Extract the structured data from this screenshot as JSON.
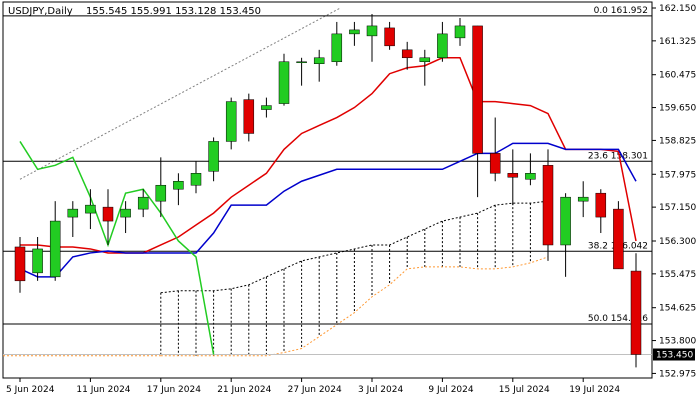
{
  "window": {
    "title": "USDJPY,Daily",
    "ohlc": "155.545 155.991 153.128 153.450"
  },
  "chart_data": {
    "type": "candlestick",
    "title": "USDJPY,Daily",
    "ylim": [
      152.86,
      162.2
    ],
    "y_ticks": [
      162.15,
      161.325,
      160.475,
      159.65,
      158.825,
      157.975,
      157.15,
      156.3,
      155.475,
      154.625,
      153.8,
      152.975
    ],
    "y_tick_labels": [
      "162.150",
      "161.325",
      "160.475",
      "159.650",
      "158.825",
      "157.975",
      "157.150",
      "156.300",
      "155.475",
      "154.625",
      "153.800",
      "152.975"
    ],
    "x_labels": [
      {
        "label": "5 Jun 2024",
        "index": 0
      },
      {
        "label": "11 Jun 2024",
        "index": 4
      },
      {
        "label": "17 Jun 2024",
        "index": 8
      },
      {
        "label": "21 Jun 2024",
        "index": 12
      },
      {
        "label": "27 Jun 2024",
        "index": 16
      },
      {
        "label": "3 Jul 2024",
        "index": 20
      },
      {
        "label": "9 Jul 2024",
        "index": 24
      },
      {
        "label": "15 Jul 2024",
        "index": 28
      },
      {
        "label": "19 Jul 2024",
        "index": 32
      }
    ],
    "candles": [
      {
        "o": 156.15,
        "h": 156.4,
        "l": 155.0,
        "c": 155.3
      },
      {
        "o": 155.5,
        "h": 156.4,
        "l": 155.3,
        "c": 156.1
      },
      {
        "o": 155.4,
        "h": 157.3,
        "l": 155.3,
        "c": 156.8
      },
      {
        "o": 156.9,
        "h": 157.3,
        "l": 156.4,
        "c": 157.1
      },
      {
        "o": 157.0,
        "h": 157.6,
        "l": 156.6,
        "c": 157.2
      },
      {
        "o": 157.15,
        "h": 157.6,
        "l": 156.2,
        "c": 156.8
      },
      {
        "o": 156.9,
        "h": 157.3,
        "l": 156.5,
        "c": 157.1
      },
      {
        "o": 157.1,
        "h": 157.6,
        "l": 156.9,
        "c": 157.4
      },
      {
        "o": 157.3,
        "h": 158.4,
        "l": 156.9,
        "c": 157.7
      },
      {
        "o": 157.6,
        "h": 158.0,
        "l": 157.2,
        "c": 157.8
      },
      {
        "o": 157.7,
        "h": 158.3,
        "l": 157.5,
        "c": 158.0
      },
      {
        "o": 158.05,
        "h": 158.9,
        "l": 157.8,
        "c": 158.8
      },
      {
        "o": 158.8,
        "h": 159.9,
        "l": 158.6,
        "c": 159.8
      },
      {
        "o": 159.85,
        "h": 160.0,
        "l": 158.8,
        "c": 159.0
      },
      {
        "o": 159.6,
        "h": 159.9,
        "l": 159.4,
        "c": 159.7
      },
      {
        "o": 159.75,
        "h": 161.0,
        "l": 159.7,
        "c": 160.8
      },
      {
        "o": 160.8,
        "h": 160.9,
        "l": 160.2,
        "c": 160.8
      },
      {
        "o": 160.75,
        "h": 161.1,
        "l": 160.3,
        "c": 160.9
      },
      {
        "o": 160.8,
        "h": 161.8,
        "l": 160.7,
        "c": 161.5
      },
      {
        "o": 161.5,
        "h": 161.8,
        "l": 161.2,
        "c": 161.6
      },
      {
        "o": 161.45,
        "h": 162.0,
        "l": 160.8,
        "c": 161.7
      },
      {
        "o": 161.65,
        "h": 161.8,
        "l": 161.1,
        "c": 161.2
      },
      {
        "o": 161.1,
        "h": 161.3,
        "l": 160.6,
        "c": 160.9
      },
      {
        "o": 160.8,
        "h": 161.1,
        "l": 160.2,
        "c": 160.9
      },
      {
        "o": 160.9,
        "h": 161.8,
        "l": 160.8,
        "c": 161.5
      },
      {
        "o": 161.4,
        "h": 161.9,
        "l": 161.2,
        "c": 161.7
      },
      {
        "o": 161.7,
        "h": 161.7,
        "l": 157.4,
        "c": 158.5
      },
      {
        "o": 158.5,
        "h": 159.4,
        "l": 157.8,
        "c": 158.0
      },
      {
        "o": 158.0,
        "h": 158.6,
        "l": 157.2,
        "c": 157.9
      },
      {
        "o": 157.85,
        "h": 158.5,
        "l": 157.7,
        "c": 158.0
      },
      {
        "o": 158.2,
        "h": 158.6,
        "l": 155.8,
        "c": 156.2
      },
      {
        "o": 156.2,
        "h": 157.5,
        "l": 155.4,
        "c": 157.4
      },
      {
        "o": 157.3,
        "h": 157.8,
        "l": 156.9,
        "c": 157.4
      },
      {
        "o": 157.5,
        "h": 157.6,
        "l": 156.5,
        "c": 156.9
      },
      {
        "o": 157.1,
        "h": 157.3,
        "l": 155.6,
        "c": 155.6
      },
      {
        "o": 155.545,
        "h": 155.991,
        "l": 153.128,
        "c": 153.45
      }
    ],
    "series": [
      {
        "name": "",
        "color": "#e00000",
        "values": [
          156.2,
          156.2,
          156.15,
          156.15,
          156.1,
          156.0,
          156.0,
          156.0,
          156.2,
          156.4,
          156.7,
          157.0,
          157.4,
          157.7,
          158.0,
          158.6,
          159.0,
          159.2,
          159.4,
          159.65,
          160.0,
          160.5,
          160.65,
          160.7,
          160.9,
          160.9,
          159.8,
          159.8,
          159.75,
          159.7,
          159.5,
          158.6,
          158.6,
          158.6,
          158.55,
          156.3
        ]
      },
      {
        "name": "",
        "color": "#0000cc",
        "values": [
          155.6,
          155.4,
          155.4,
          155.9,
          156.0,
          156.05,
          156.0,
          156.0,
          156.0,
          156.0,
          156.0,
          156.5,
          157.2,
          157.2,
          157.2,
          157.55,
          157.8,
          157.95,
          158.1,
          158.1,
          158.1,
          158.1,
          158.1,
          158.1,
          158.1,
          158.3,
          158.5,
          158.5,
          158.75,
          158.75,
          158.75,
          158.6,
          158.6,
          158.6,
          158.6,
          157.8
        ]
      },
      {
        "name": "",
        "color": "#22cc22",
        "values": [
          158.8,
          158.1,
          158.2,
          158.4,
          157.4,
          156.2,
          157.5,
          157.6,
          157.0,
          156.3,
          155.9,
          153.45
        ]
      }
    ],
    "cloud": {
      "span_a": [
        155.0,
        155.05,
        155.05,
        155.05,
        155.1,
        155.2,
        155.4,
        155.6,
        155.8,
        155.9,
        156.0,
        156.1,
        156.2,
        156.2,
        156.4,
        156.6,
        156.8,
        156.9,
        157.0,
        157.2,
        157.25,
        157.25,
        157.3
      ],
      "span_b": [
        153.42,
        153.42,
        153.42,
        153.42,
        153.42,
        153.42,
        153.42,
        153.5,
        153.6,
        153.9,
        154.2,
        154.5,
        154.9,
        155.2,
        155.6,
        155.65,
        155.65,
        155.65,
        155.6,
        155.6,
        155.65,
        155.75,
        155.9
      ]
    },
    "fib_levels": [
      {
        "label": "0.0 161.952",
        "value": 161.952
      },
      {
        "label": "23.6 158.301",
        "value": 158.301
      },
      {
        "label": "38.2 156.042",
        "value": 156.042
      },
      {
        "label": "50.0 154.216",
        "value": 154.216
      }
    ],
    "current_price": {
      "label": "153.450",
      "value": 153.45
    },
    "colors": {
      "bull": "#22cc22",
      "bear": "#e00000",
      "tenkan": "#e00000",
      "kijun": "#0000cc",
      "chikou": "#22cc22",
      "cloud_a": "#ff9933",
      "cloud_b": "#000000",
      "trend": "#808080"
    }
  }
}
